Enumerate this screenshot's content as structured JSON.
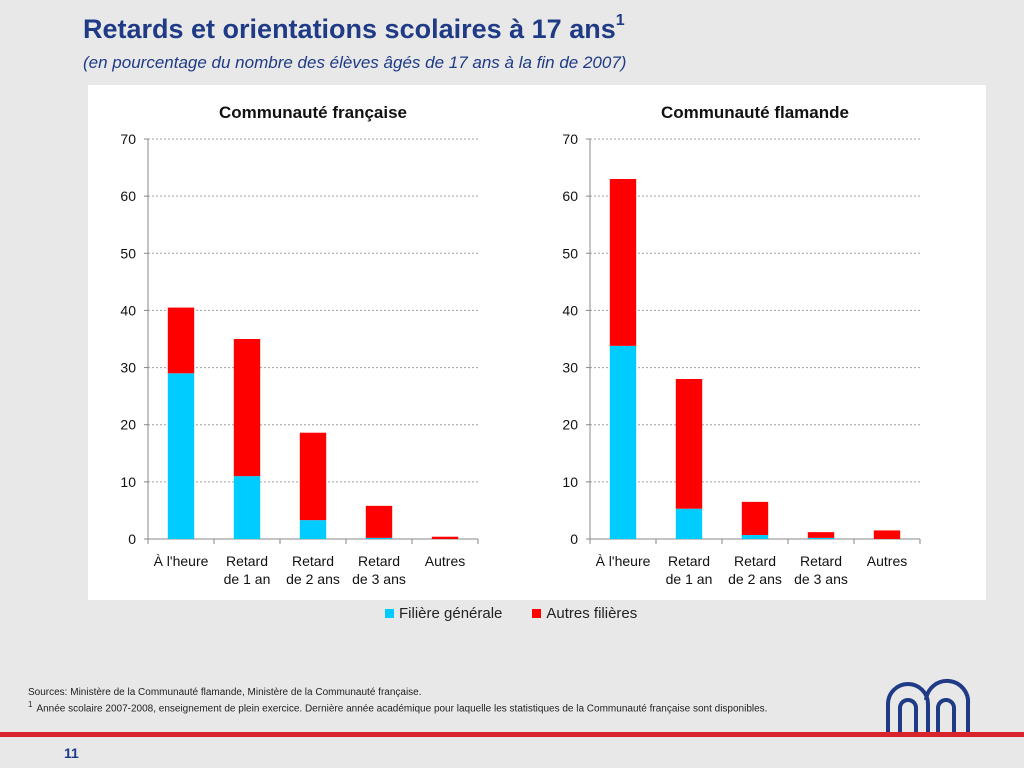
{
  "slide": {
    "title": "Retards et orientations scolaires à 17 ans",
    "title_sup": "1",
    "subtitle": "(en pourcentage du nombre des élèves âgés de 17 ans à la fin de 2007)",
    "sources": "Sources: Ministère de la Communauté flamande, Ministère de la Communauté française.",
    "footnote_mark": "1",
    "footnote_text": "Année scolaire 2007-2008, enseignement de plein exercice. Dernière année académique pour laquelle les statistiques de la Communauté française sont disponibles.",
    "page_number": "11"
  },
  "legend": [
    {
      "name": "Filière générale",
      "color": "#00ccff"
    },
    {
      "name": "Autres filières",
      "color": "#ff0000"
    }
  ],
  "chart_data": [
    {
      "type": "bar",
      "stacked": true,
      "title": "Communauté française",
      "categories": [
        [
          "À l'heure"
        ],
        [
          "Retard",
          "de 1 an"
        ],
        [
          "Retard",
          "de 2 ans"
        ],
        [
          "Retard",
          "de 3 ans"
        ],
        [
          "Autres"
        ]
      ],
      "series": [
        {
          "name": "Filière générale",
          "color": "#00ccff",
          "values": [
            29,
            11,
            3.3,
            0.2,
            0
          ]
        },
        {
          "name": "Autres filières",
          "color": "#ff0000",
          "values": [
            11.5,
            24,
            15.3,
            5.6,
            0.4
          ]
        }
      ],
      "yticks": [
        0,
        10,
        20,
        30,
        40,
        50,
        60,
        70
      ],
      "ylim": [
        0,
        70
      ],
      "grid": true
    },
    {
      "type": "bar",
      "stacked": true,
      "title": "Communauté flamande",
      "categories": [
        [
          "À l'heure"
        ],
        [
          "Retard",
          "de 1 an"
        ],
        [
          "Retard",
          "de 2 ans"
        ],
        [
          "Retard",
          "de 3 ans"
        ],
        [
          "Autres"
        ]
      ],
      "series": [
        {
          "name": "Filière générale",
          "color": "#00ccff",
          "values": [
            33.8,
            5.3,
            0.7,
            0.2,
            0
          ]
        },
        {
          "name": "Autres filières",
          "color": "#ff0000",
          "values": [
            29.2,
            22.7,
            5.8,
            1.0,
            1.5
          ]
        }
      ],
      "yticks": [
        0,
        10,
        20,
        30,
        40,
        50,
        60,
        70
      ],
      "ylim": [
        0,
        70
      ],
      "grid": true
    }
  ],
  "logo": {
    "icon": "nbb-logo-icon"
  }
}
